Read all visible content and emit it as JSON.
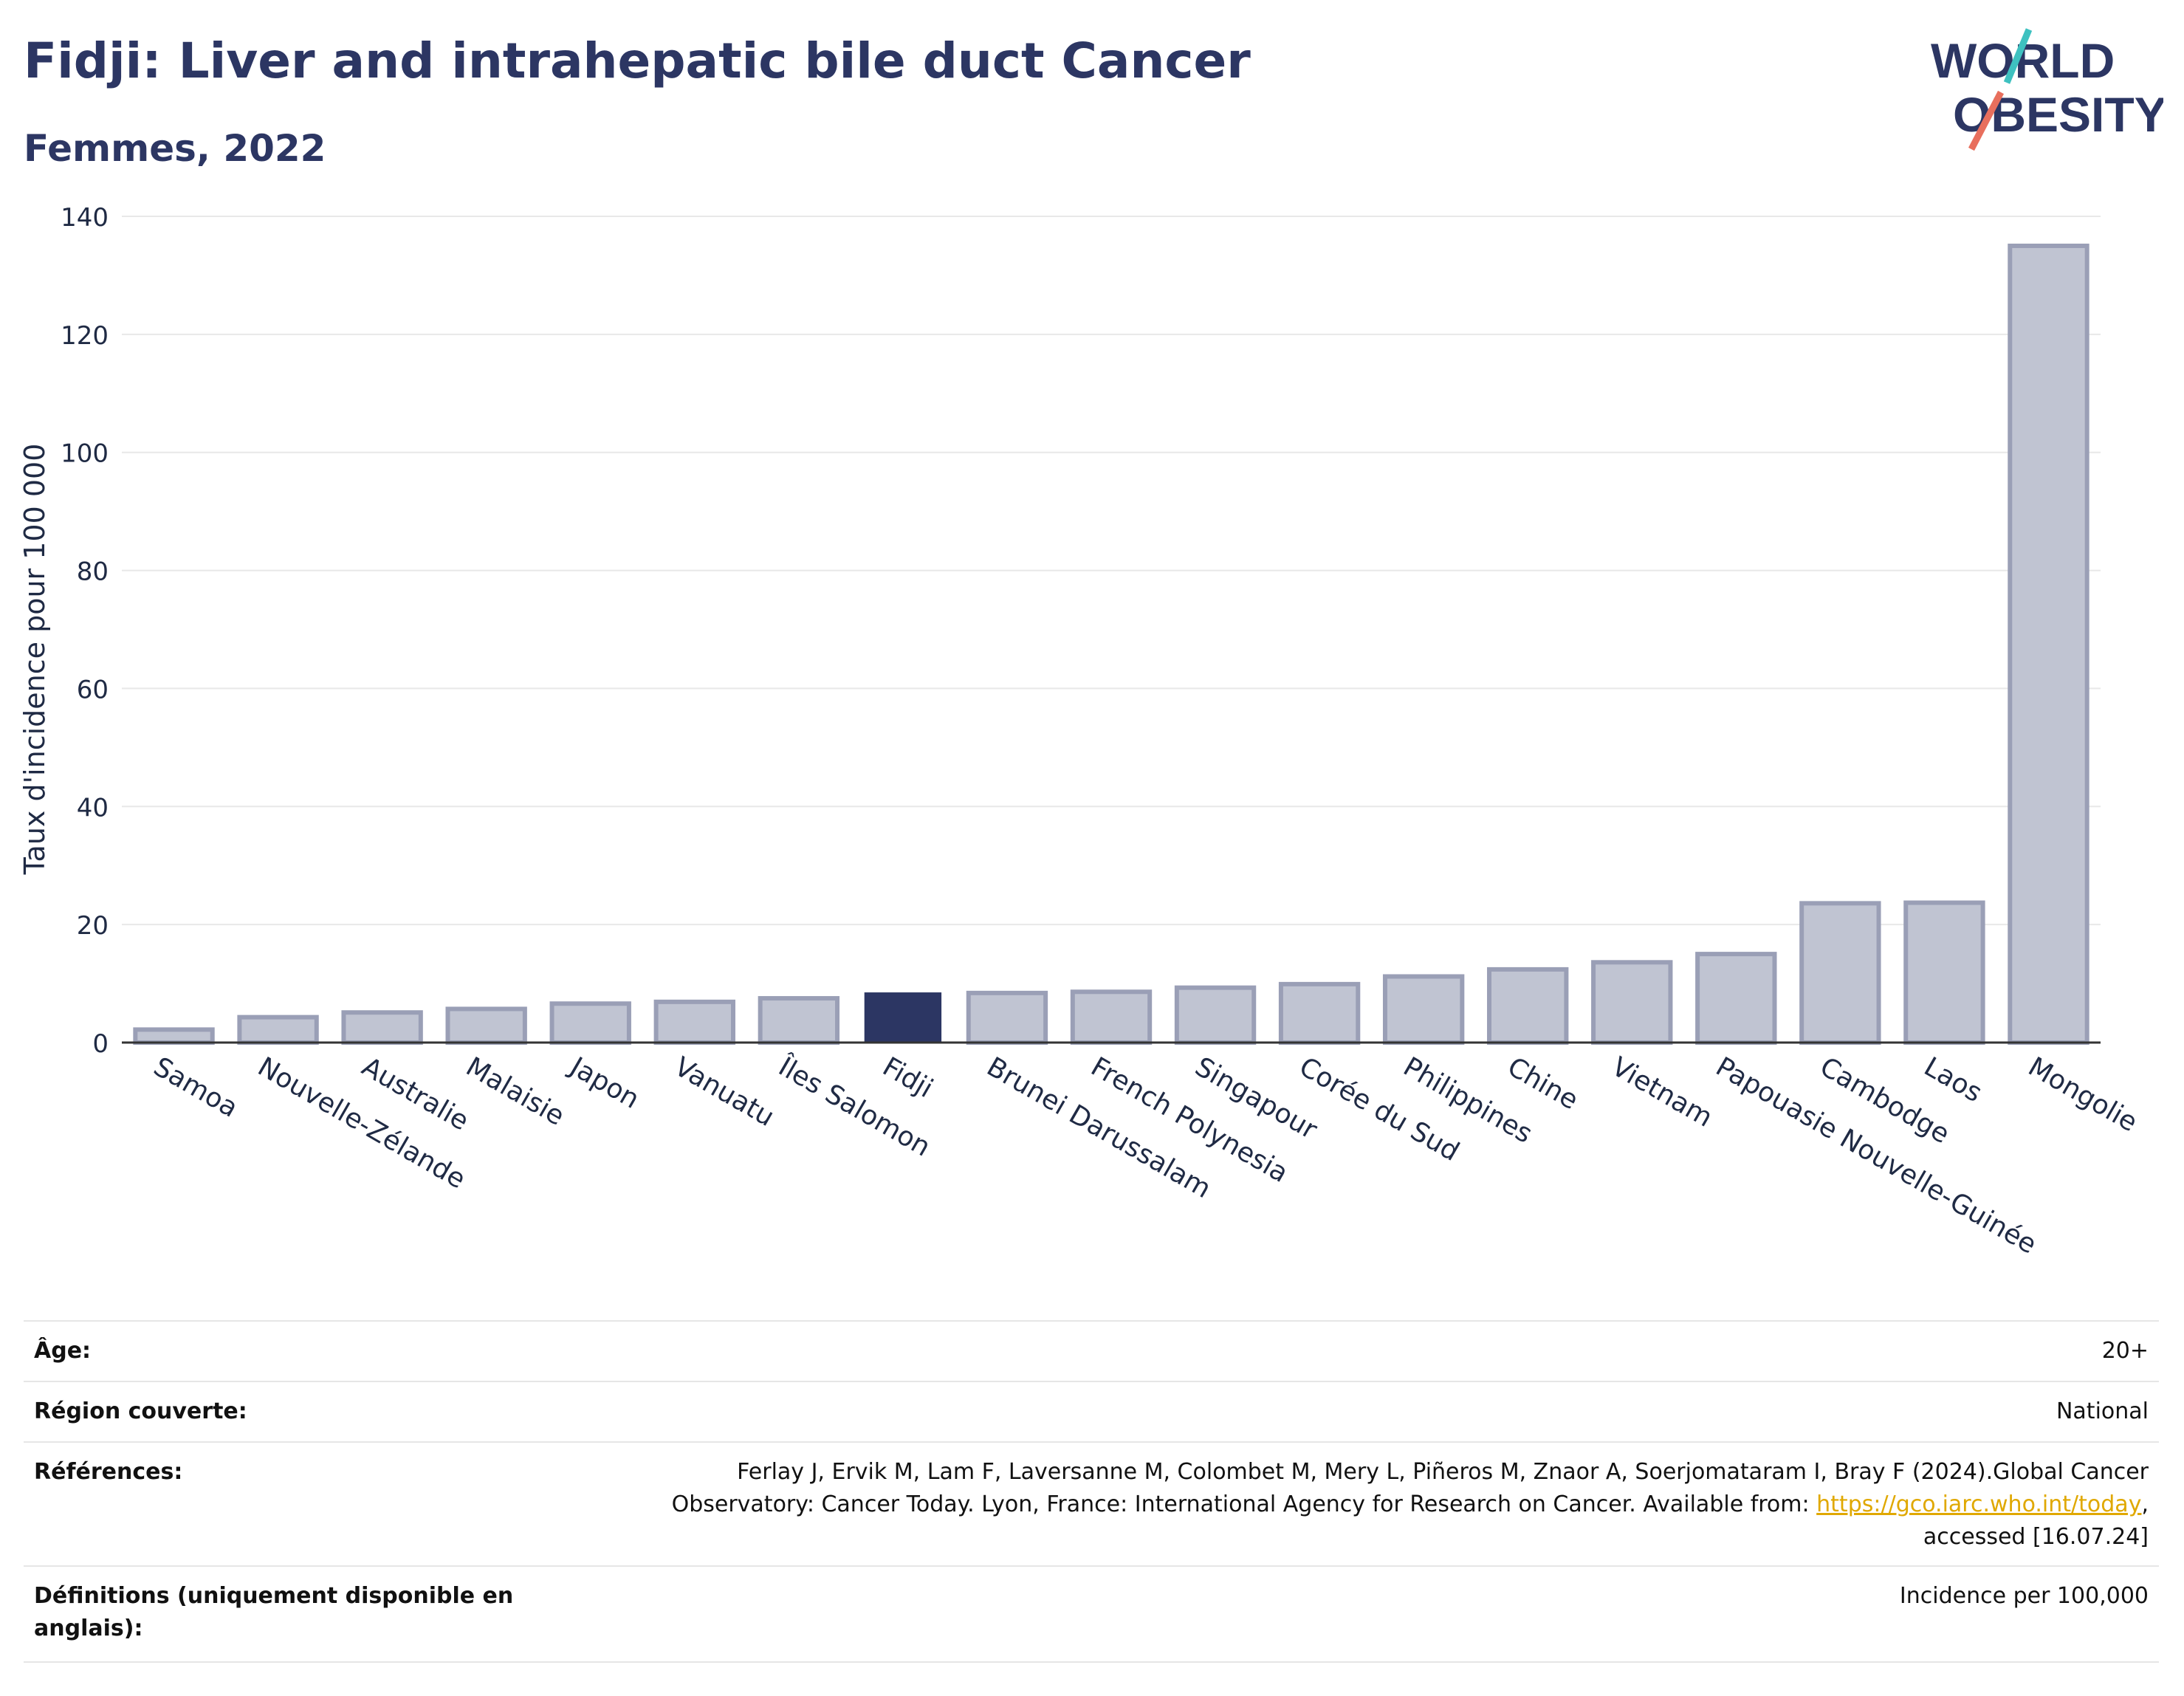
{
  "header": {
    "title": "Fidji: Liver and intrahepatic bile duct Cancer",
    "subtitle": "Femmes, 2022",
    "logo_line1": "WORLD",
    "logo_line2": "OBESITY"
  },
  "colors": {
    "highlight": "#2c3663",
    "bar": "#c0c4d2",
    "bar_border": "#9a9fb6",
    "grid": "#e8e8e8",
    "logo_teal": "#3ec1c0",
    "logo_coral": "#e86f5d"
  },
  "chart_data": {
    "type": "bar",
    "title": "Fidji: Liver and intrahepatic bile duct Cancer",
    "subtitle": "Femmes, 2022",
    "ylabel": "Taux d'incidence pour 100 000",
    "xlabel": "",
    "ylim": [
      0,
      140
    ],
    "yticks": [
      0,
      20,
      40,
      60,
      80,
      100,
      120,
      140
    ],
    "grid": true,
    "highlight": "Fidji",
    "categories": [
      "Samoa",
      "Nouvelle-Zélande",
      "Australie",
      "Malaisie",
      "Japon",
      "Vanuatu",
      "Îles Salomon",
      "Fidji",
      "Brunei Darussalam",
      "French Polynesia",
      "Singapour",
      "Corée du Sud",
      "Philippines",
      "Chine",
      "Vietnam",
      "Papouasie Nouvelle-Guinée",
      "Cambodge",
      "Laos",
      "Mongolie"
    ],
    "values": [
      2.2,
      4.3,
      5.1,
      5.7,
      6.6,
      6.9,
      7.5,
      8.5,
      8.4,
      8.6,
      9.3,
      9.9,
      11.2,
      12.4,
      13.6,
      15.0,
      23.6,
      23.7,
      135.0
    ]
  },
  "meta": {
    "rows": [
      {
        "label": "Âge:",
        "value": "20+"
      },
      {
        "label": "Région couverte:",
        "value": "National"
      },
      {
        "label": "Références:",
        "value_pre": "Ferlay J, Ervik M, Lam F, Laversanne M, Colombet M, Mery L, Piñeros M, Znaor A, Soerjomataram I, Bray F (2024).Global Cancer",
        "value_mid": "Observatory: Cancer Today. Lyon, France: International Agency for Research on Cancer. Available from:",
        "link": "https://gco.iarc.who.int/today",
        "value_post": ",",
        "value_end": "accessed [16.07.24]"
      },
      {
        "label": "Définitions (uniquement disponible en anglais):",
        "value": "Incidence per 100,000"
      }
    ]
  }
}
